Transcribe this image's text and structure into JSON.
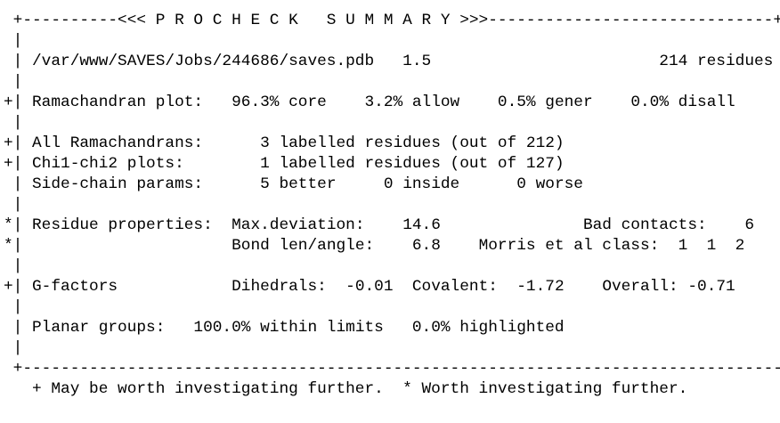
{
  "report": {
    "title_prefix": "<<<",
    "title": "P R O C H E C K   S U M M A R Y",
    "title_suffix": ">>>",
    "file_path": "/var/www/SAVES/Jobs/244686/saves.pdb",
    "resolution": "1.5",
    "residue_count": "214 residues",
    "ramachandran": {
      "flag": "+",
      "label": "Ramachandran plot:",
      "core": "96.3% core",
      "allow": "3.2% allow",
      "gener": "0.5% gener",
      "disall": "0.0% disall"
    },
    "all_ramachandrans": {
      "flag": "+",
      "label": "All Ramachandrans:",
      "value": "3 labelled residues (out of 212)"
    },
    "chi_plots": {
      "flag": "+",
      "label": "Chi1-chi2 plots:",
      "value": "1 labelled residues (out of 127)"
    },
    "side_chain": {
      "flag": "",
      "label": "Side-chain params:",
      "better": "5 better",
      "inside": "0 inside",
      "worse": "0 worse"
    },
    "residue_props": {
      "flag1": "*",
      "flag2": "*",
      "label": "Residue properties:",
      "max_dev_label": "Max.deviation:",
      "max_dev_value": "14.6",
      "bad_contacts_label": "Bad contacts:",
      "bad_contacts_value": "6",
      "bond_label": "Bond len/angle:",
      "bond_value": "6.8",
      "morris_label": "Morris et al class:",
      "morris_value": "1  1  2"
    },
    "g_factors": {
      "flag": "+",
      "label": "G-factors",
      "dihedrals_label": "Dihedrals:",
      "dihedrals_value": "-0.01",
      "covalent_label": "Covalent:",
      "covalent_value": "-1.72",
      "overall_label": "Overall:",
      "overall_value": "-0.71"
    },
    "planar": {
      "label": "Planar groups:",
      "within": "100.0% within limits",
      "highlighted": "0.0% highlighted"
    },
    "legend": {
      "plus": "+ May be worth investigating further.",
      "star": "* Worth investigating further."
    }
  }
}
